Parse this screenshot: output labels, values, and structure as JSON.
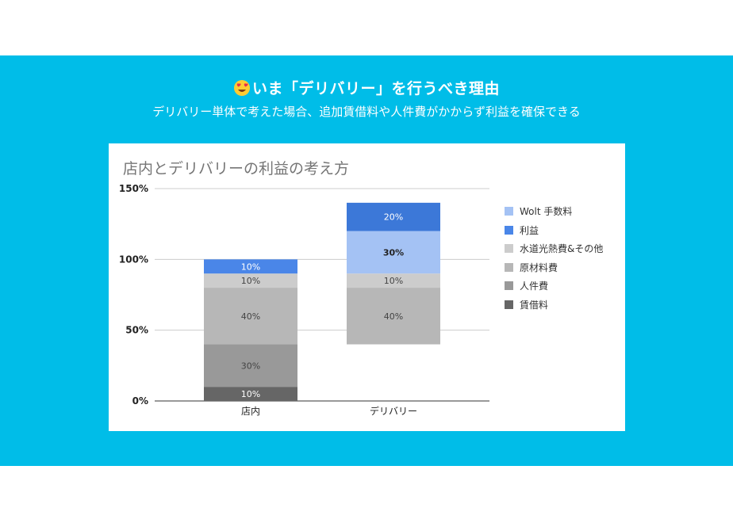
{
  "banner": {
    "headline": "いま「デリバリー」を行うべき理由",
    "subline": "デリバリー単体で考えた場合、追加賃借料や人件費がかからず利益を確保できる"
  },
  "chart_data": {
    "type": "bar",
    "stacked": true,
    "title": "店内とデリバリーの利益の考え方",
    "categories": [
      "店内",
      "デリバリー"
    ],
    "ylim": [
      0,
      150
    ],
    "yticks": [
      "0%",
      "50%",
      "100%",
      "150%"
    ],
    "grid": true,
    "legend_position": "right",
    "series": [
      {
        "name": "賃借料",
        "color": "#666666",
        "values": [
          10,
          0
        ],
        "labels": [
          "10%",
          ""
        ],
        "label_color": "#ffffff"
      },
      {
        "name": "人件費",
        "color": "#999999",
        "values": [
          30,
          0
        ],
        "labels": [
          "30%",
          ""
        ],
        "label_color": "#444444"
      },
      {
        "name": "原材料費",
        "color": "#b7b7b7",
        "values": [
          40,
          40
        ],
        "labels": [
          "40%",
          "40%"
        ],
        "label_color": "#444444"
      },
      {
        "name": "水道光熱費&その他",
        "color": "#cccccc",
        "values": [
          10,
          10
        ],
        "labels": [
          "10%",
          "10%"
        ],
        "label_color": "#444444"
      },
      {
        "name": "利益",
        "color": "#4a86e8",
        "values": [
          10,
          0
        ],
        "labels": [
          "10%",
          ""
        ],
        "label_color": "#ffffff"
      },
      {
        "name": "Wolt 手数料",
        "color": "#a4c2f4",
        "values": [
          0,
          30
        ],
        "labels": [
          "",
          "30%"
        ],
        "label_color": "#222222"
      },
      {
        "name": "利益",
        "color": "#3c78d8",
        "values": [
          0,
          20
        ],
        "labels": [
          "",
          "20%"
        ],
        "label_color": "#ffffff"
      }
    ],
    "bar_bases": [
      0,
      40
    ],
    "legend": [
      {
        "name": "Wolt 手数料",
        "color": "#a4c2f4"
      },
      {
        "name": "利益",
        "color": "#4a86e8"
      },
      {
        "name": "水道光熱費&その他",
        "color": "#cccccc"
      },
      {
        "name": "原材料費",
        "color": "#b7b7b7"
      },
      {
        "name": "人件費",
        "color": "#999999"
      },
      {
        "name": "賃借料",
        "color": "#666666"
      }
    ]
  }
}
